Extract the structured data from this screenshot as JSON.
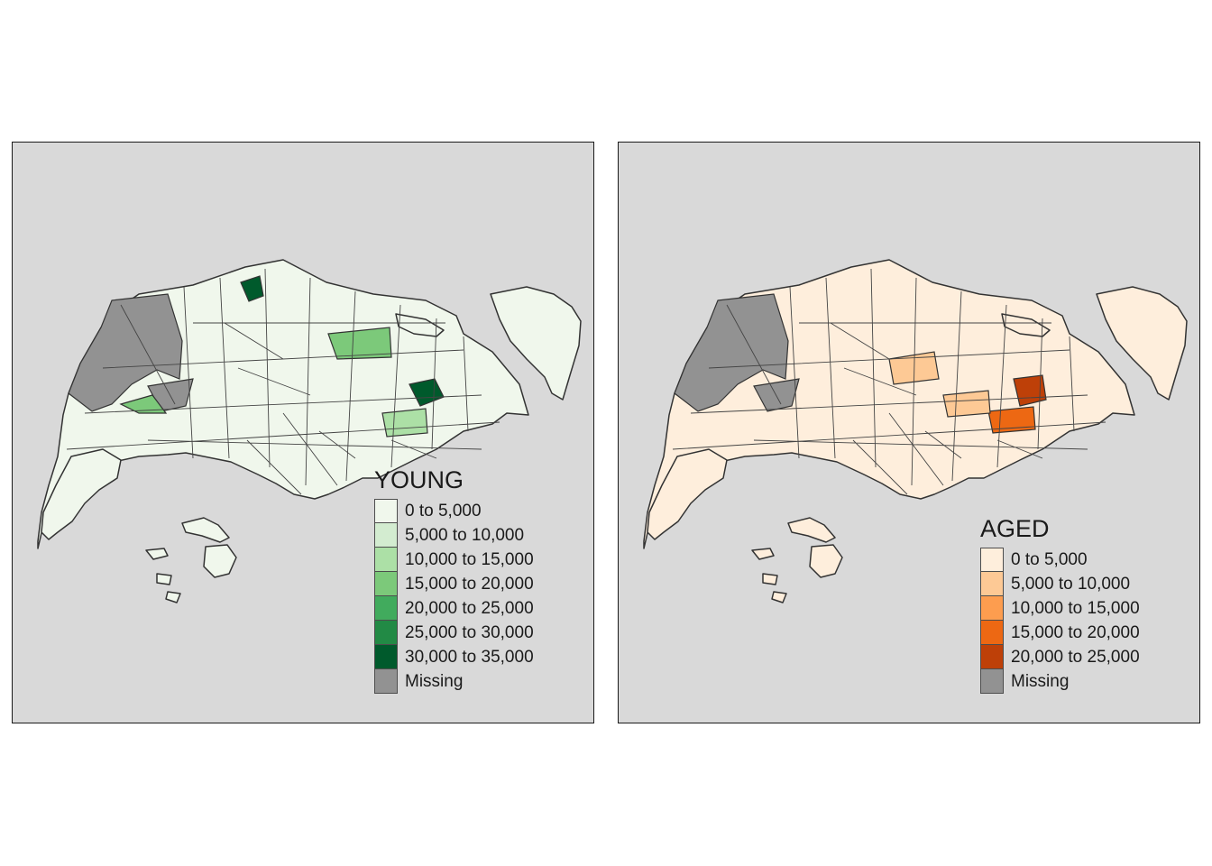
{
  "maps": [
    {
      "id": "young",
      "legend_title": "YOUNG",
      "legend_items": [
        {
          "label": "0 to 5,000",
          "color": "#f0f7ec"
        },
        {
          "label": "5,000 to 10,000",
          "color": "#d3ecd0"
        },
        {
          "label": "10,000 to 15,000",
          "color": "#ace0a6"
        },
        {
          "label": "15,000 to 20,000",
          "color": "#7cc97a"
        },
        {
          "label": "20,000 to 25,000",
          "color": "#41ab5d"
        },
        {
          "label": "25,000 to 30,000",
          "color": "#228a45"
        },
        {
          "label": "30,000 to 35,000",
          "color": "#005a2c"
        },
        {
          "label": "Missing",
          "color": "#929292"
        }
      ]
    },
    {
      "id": "aged",
      "legend_title": "AGED",
      "legend_items": [
        {
          "label": "0 to 5,000",
          "color": "#feeedc"
        },
        {
          "label": "5,000 to 10,000",
          "color": "#fdc995"
        },
        {
          "label": "10,000 to 15,000",
          "color": "#fd9d4f"
        },
        {
          "label": "15,000 to 20,000",
          "color": "#ed6813"
        },
        {
          "label": "20,000 to 25,000",
          "color": "#be4008"
        },
        {
          "label": "Missing",
          "color": "#929292"
        }
      ]
    }
  ],
  "colors": {
    "panel_background": "#d9d9d9",
    "border": "#333333",
    "missing": "#929292"
  }
}
